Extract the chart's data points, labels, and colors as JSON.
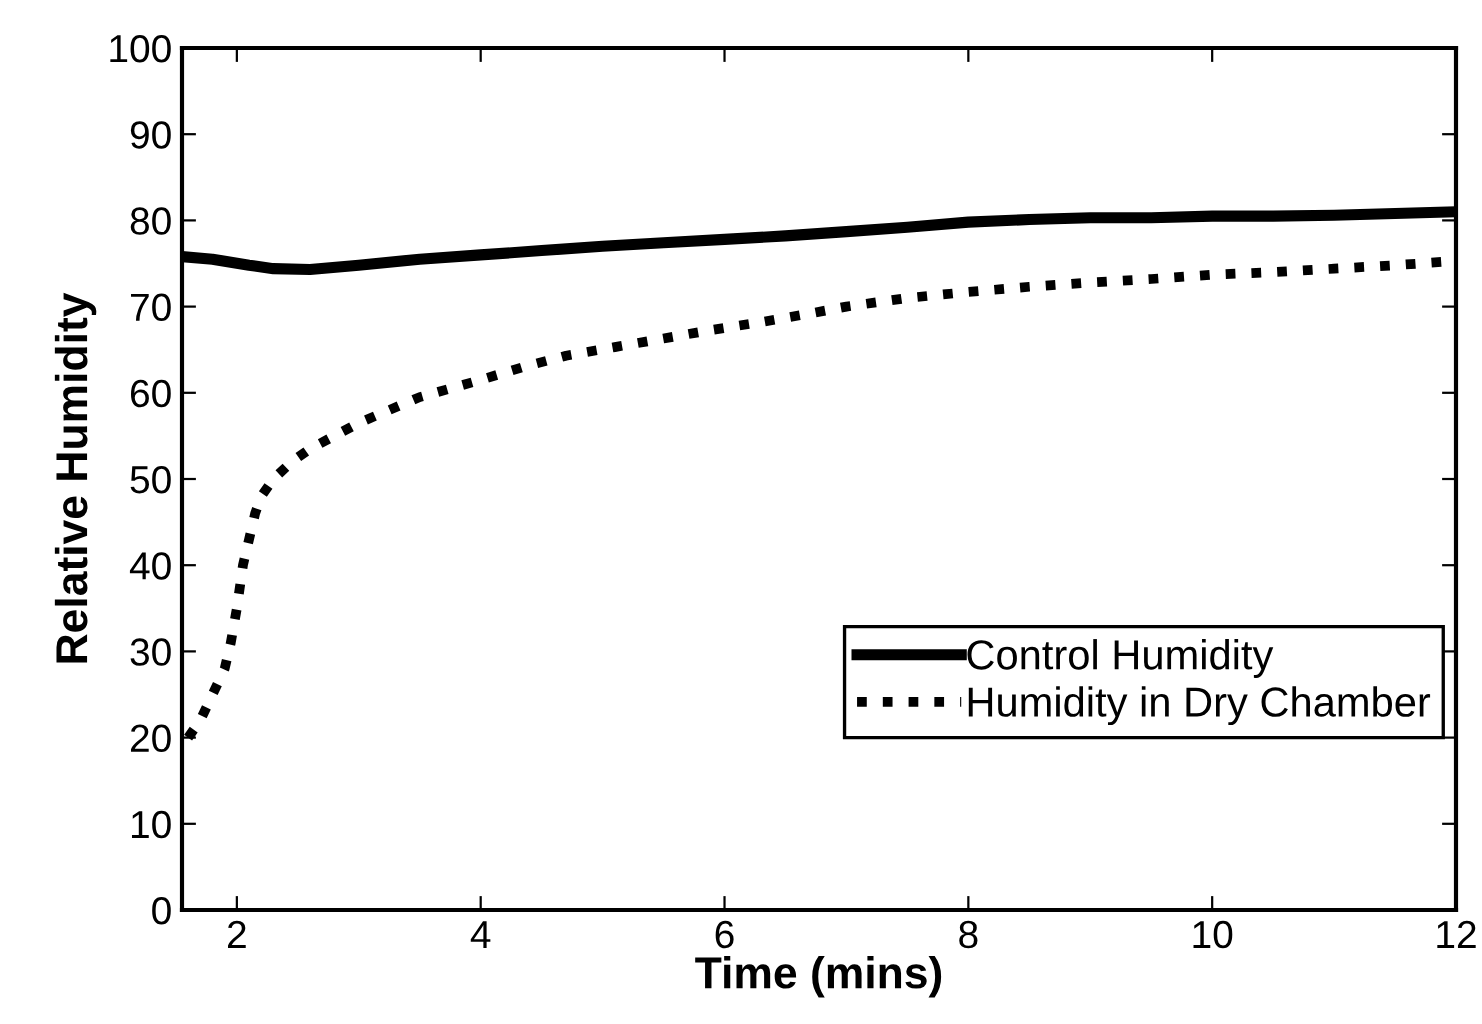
{
  "chart_data": {
    "type": "line",
    "xlabel": "Time (mins)",
    "ylabel": "Relative Humidity",
    "xlim": [
      1.55,
      12
    ],
    "ylim": [
      0,
      100
    ],
    "xticks": [
      2,
      4,
      6,
      8,
      10,
      12
    ],
    "yticks": [
      0,
      10,
      20,
      30,
      40,
      50,
      60,
      70,
      80,
      90,
      100
    ],
    "grid": false,
    "legend": "lower right",
    "series": [
      {
        "name": "Control Humidity",
        "color": "#000000",
        "line_style": "solid",
        "x": [
          1.55,
          1.8,
          2.1,
          2.3,
          2.6,
          3,
          3.5,
          4,
          4.5,
          5,
          5.5,
          6,
          6.5,
          7,
          7.5,
          8,
          8.5,
          9,
          9.5,
          10,
          10.5,
          11,
          11.5,
          12
        ],
        "values": [
          75.8,
          75.5,
          74.8,
          74.4,
          74.3,
          74.8,
          75.5,
          76,
          76.5,
          77,
          77.4,
          77.8,
          78.2,
          78.7,
          79.2,
          79.8,
          80.1,
          80.3,
          80.3,
          80.5,
          80.5,
          80.6,
          80.8,
          81
        ]
      },
      {
        "name": "Humidity in Dry Chamber",
        "color": "#000000",
        "line_style": "dotted",
        "x": [
          1.6,
          1.7,
          1.8,
          1.9,
          1.95,
          2.0,
          2.05,
          2.1,
          2.15,
          2.2,
          2.3,
          2.45,
          2.6,
          2.8,
          3,
          3.25,
          3.5,
          3.75,
          4,
          4.35,
          4.7,
          5.1,
          5.5,
          5.9,
          6.3,
          6.7,
          7,
          7.5,
          8,
          8.5,
          9,
          9.5,
          10,
          10.5,
          11,
          11.5,
          12
        ],
        "values": [
          20,
          22,
          25,
          28,
          31,
          35,
          40,
          43,
          46,
          48,
          50,
          52,
          53.5,
          55,
          56.5,
          58,
          59.5,
          60.5,
          61.5,
          63,
          64.3,
          65.3,
          66.3,
          67.3,
          68.2,
          69.2,
          70,
          71,
          71.7,
          72.3,
          72.8,
          73.2,
          73.7,
          74,
          74.4,
          74.8,
          75.3
        ]
      }
    ]
  }
}
